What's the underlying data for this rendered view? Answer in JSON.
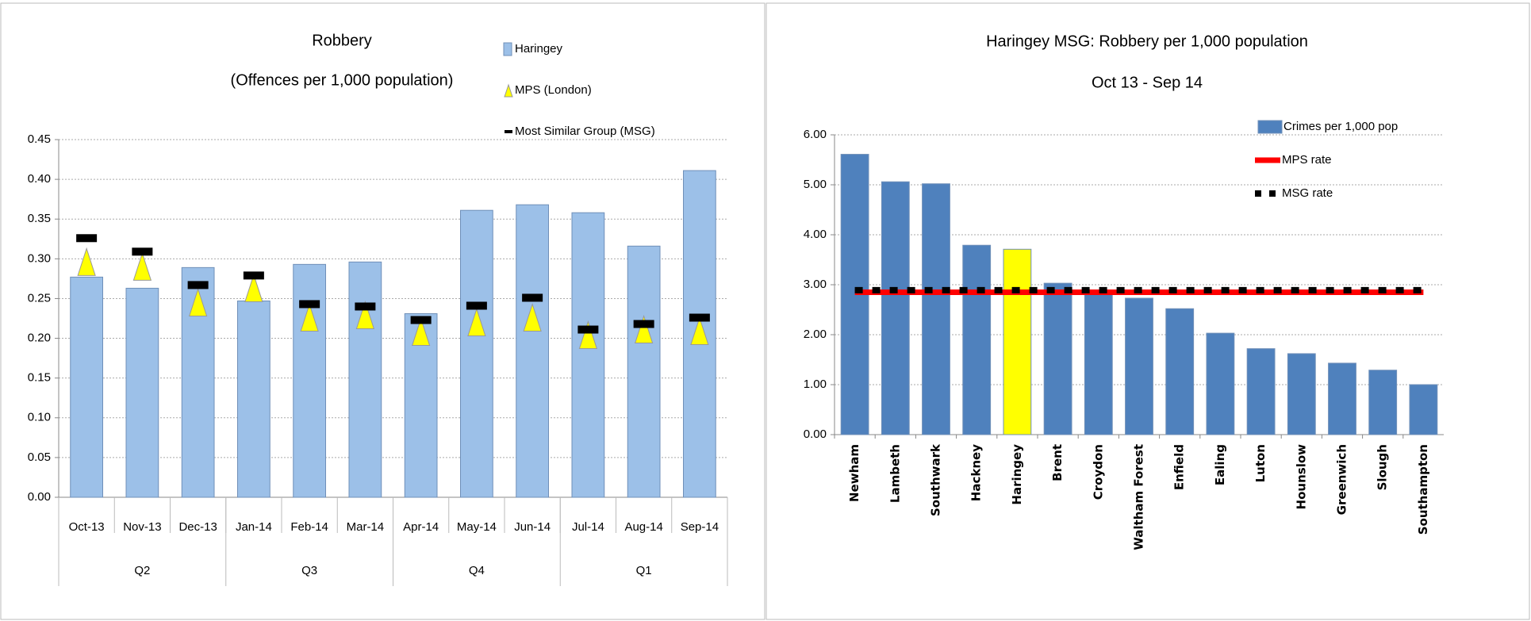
{
  "chart_data": [
    {
      "type": "bar",
      "title": "Robbery",
      "subtitle": "(Offences per 1,000 population)",
      "categories": [
        "Oct-13",
        "Nov-13",
        "Dec-13",
        "Jan-14",
        "Feb-14",
        "Mar-14",
        "Apr-14",
        "May-14",
        "Jun-14",
        "Jul-14",
        "Aug-14",
        "Sep-14"
      ],
      "groups": [
        "Q2",
        null,
        null,
        "Q3",
        null,
        null,
        "Q4",
        null,
        null,
        "Q1",
        null,
        null
      ],
      "series": [
        {
          "name": "Haringey",
          "type": "bar",
          "color": "#9cc0e8",
          "values": [
            0.277,
            0.263,
            0.289,
            0.247,
            0.293,
            0.296,
            0.231,
            0.361,
            0.368,
            0.358,
            0.316,
            0.411
          ]
        },
        {
          "name": "MPS (London)",
          "type": "marker",
          "marker": "triangle",
          "color": "#ffff00",
          "values": [
            0.296,
            0.29,
            0.245,
            0.263,
            0.226,
            0.229,
            0.208,
            0.22,
            0.226,
            0.204,
            0.211,
            0.209
          ]
        },
        {
          "name": "Most Similar Group (MSG)",
          "type": "marker",
          "marker": "dash",
          "color": "#000000",
          "values": [
            0.326,
            0.309,
            0.267,
            0.279,
            0.243,
            0.24,
            0.223,
            0.241,
            0.251,
            0.211,
            0.218,
            0.226
          ]
        }
      ],
      "ylim": [
        0,
        0.45
      ],
      "yticks": [
        {
          "value": 0,
          "label": "0.00"
        },
        0.05,
        {
          "value": 0.1,
          "label": "0.10"
        },
        0.15,
        {
          "value": 0.2,
          "label": "0.20"
        },
        0.25,
        {
          "value": 0.3,
          "label": "0.30"
        },
        0.35,
        {
          "value": 0.4,
          "label": "0.40"
        },
        0.45
      ],
      "grid": true
    },
    {
      "type": "bar",
      "title": "Haringey MSG: Robbery per 1,000 population",
      "subtitle": "Oct 13 - Sep 14",
      "categories": [
        "Newham",
        "Lambeth",
        "Southwark",
        "Hackney",
        "Haringey",
        "Brent",
        "Croydon",
        "Waltham Forest",
        "Enfield",
        "Ealing",
        "Luton",
        "Hounslow",
        "Greenwich",
        "Slough",
        "Southampton"
      ],
      "series": [
        {
          "name": "Crimes per 1,000 pop",
          "type": "bar",
          "color": "#4f81bd",
          "point_colors": [
            "#4f81bd",
            "#4f81bd",
            "#4f81bd",
            "#4f81bd",
            "#ffff00",
            "#4f81bd",
            "#4f81bd",
            "#4f81bd",
            "#4f81bd",
            "#4f81bd",
            "#4f81bd",
            "#4f81bd",
            "#4f81bd",
            "#4f81bd",
            "#4f81bd"
          ],
          "values": [
            5.61,
            5.06,
            5.02,
            3.79,
            3.71,
            3.03,
            2.81,
            2.73,
            2.52,
            2.03,
            1.72,
            1.62,
            1.43,
            1.29,
            1.0
          ]
        },
        {
          "name": "MPS rate",
          "type": "line",
          "color": "#ff0000",
          "values": [
            2.85,
            2.85,
            2.85,
            2.85,
            2.85,
            2.85,
            2.85,
            2.85,
            2.85,
            2.85,
            2.85,
            2.85,
            2.85,
            2.85,
            2.85
          ]
        },
        {
          "name": "MSG rate",
          "type": "line",
          "dashed": true,
          "color": "#000000",
          "values": [
            2.89,
            2.89,
            2.89,
            2.89,
            2.89,
            2.89,
            2.89,
            2.89,
            2.89,
            2.89,
            2.89,
            2.89,
            2.89,
            2.89,
            2.89
          ]
        }
      ],
      "ylim": [
        0,
        6
      ],
      "yticks": [
        {
          "value": 0,
          "label": "0.00"
        },
        {
          "value": 1,
          "label": "1.00"
        },
        {
          "value": 2,
          "label": "2.00"
        },
        {
          "value": 3,
          "label": "3.00"
        },
        {
          "value": 4,
          "label": "4.00"
        },
        {
          "value": 5,
          "label": "5.00"
        },
        {
          "value": 6,
          "label": "6.00"
        }
      ],
      "grid": true
    }
  ]
}
